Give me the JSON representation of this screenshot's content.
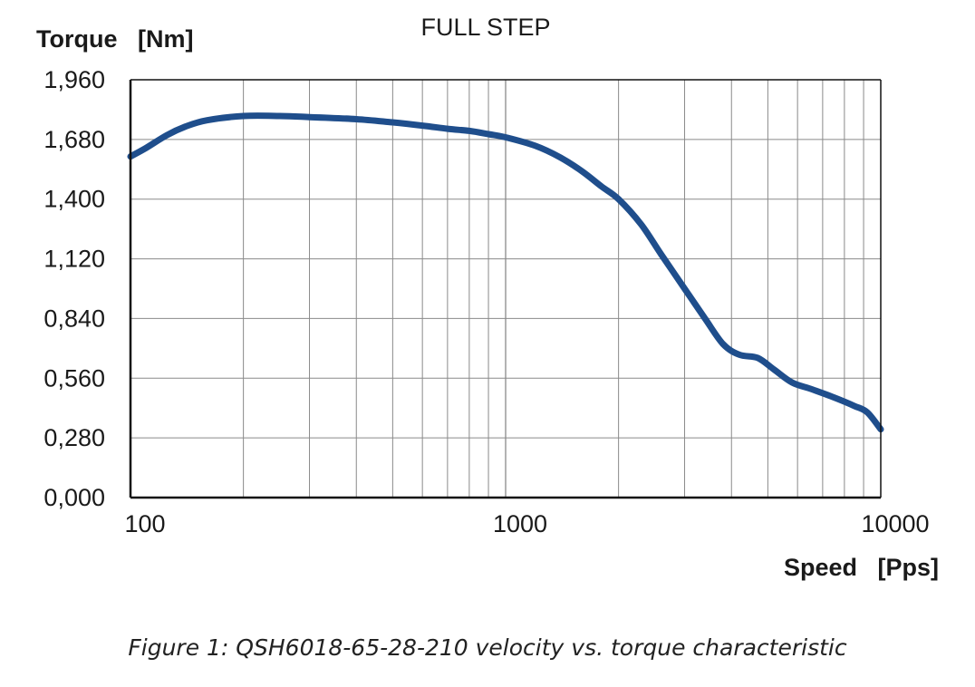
{
  "chart_data": {
    "type": "line",
    "title": "FULL STEP",
    "ylabel": "Torque   [Nm]",
    "xlabel": "Speed   [Pps]",
    "x_scale": "log",
    "xlim": [
      100,
      10000
    ],
    "ylim": [
      0,
      1.96
    ],
    "x_ticks": [
      100,
      1000,
      10000
    ],
    "x_tick_labels": [
      "100",
      "1000",
      "10000"
    ],
    "y_ticks": [
      0,
      0.28,
      0.56,
      0.84,
      1.12,
      1.4,
      1.68,
      1.96
    ],
    "y_tick_labels": [
      "0,000",
      "0,280",
      "0,560",
      "0,840",
      "1,120",
      "1,400",
      "1,680",
      "1,960"
    ],
    "grid": true,
    "series": [
      {
        "color": "#1f4e8c",
        "x": [
          100,
          110,
          125,
          140,
          160,
          200,
          250,
          300,
          400,
          500,
          600,
          700,
          800,
          900,
          1000,
          1200,
          1400,
          1600,
          1800,
          2000,
          2300,
          2600,
          3000,
          3400,
          3800,
          4200,
          4700,
          5200,
          5800,
          6500,
          7500,
          8500,
          9200,
          10000
        ],
        "y": [
          1.6,
          1.64,
          1.7,
          1.74,
          1.77,
          1.79,
          1.79,
          1.785,
          1.775,
          1.76,
          1.745,
          1.73,
          1.72,
          1.705,
          1.69,
          1.65,
          1.595,
          1.53,
          1.46,
          1.4,
          1.28,
          1.14,
          0.98,
          0.84,
          0.72,
          0.67,
          0.655,
          0.6,
          0.54,
          0.51,
          0.47,
          0.43,
          0.4,
          0.32
        ]
      }
    ]
  },
  "caption": "Figure 1: QSH6018-65-28-210 velocity vs. torque characteristic",
  "style": {
    "line_color": "#1f4e8c",
    "grid_color": "#8a8a8a",
    "axis_color": "#111111"
  }
}
